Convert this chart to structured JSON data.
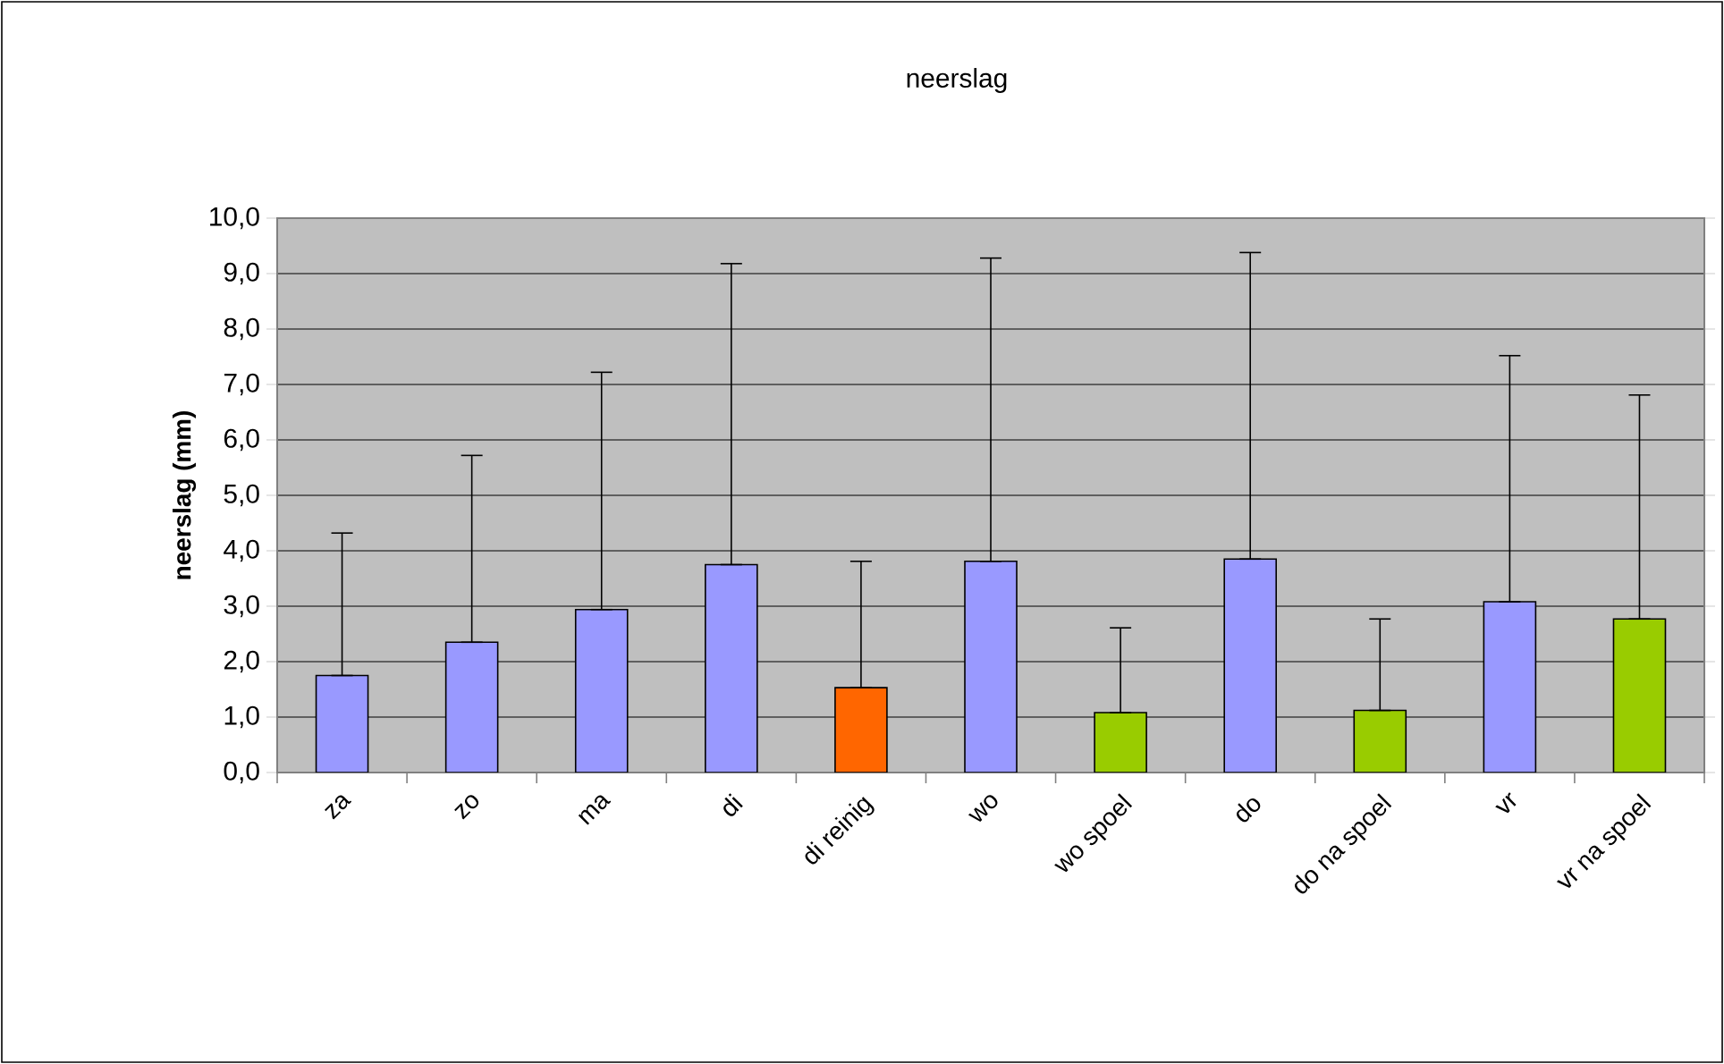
{
  "chart_data": {
    "type": "bar",
    "title": "neerslag",
    "ylabel": "neerslag (mm)",
    "categories": [
      "za",
      "zo",
      "ma",
      "di",
      "di reinig",
      "wo",
      "wo spoel",
      "do",
      "do na spoel",
      "vr",
      "vr na spoel"
    ],
    "values": [
      1.75,
      2.35,
      2.94,
      3.75,
      1.53,
      3.81,
      1.08,
      3.85,
      1.12,
      3.08,
      2.77
    ],
    "colors": [
      "#9999ff",
      "#9999ff",
      "#9999ff",
      "#9999ff",
      "#ff6600",
      "#9999ff",
      "#99cc00",
      "#9999ff",
      "#99cc00",
      "#9999ff",
      "#99cc00"
    ],
    "errors": [
      [
        1.75,
        4.32
      ],
      [
        2.35,
        5.72
      ],
      [
        2.94,
        7.22
      ],
      [
        3.75,
        9.18
      ],
      [
        1.53,
        3.81
      ],
      [
        3.81,
        9.28
      ],
      [
        1.08,
        2.61
      ],
      [
        3.85,
        9.38
      ],
      [
        1.12,
        2.77
      ],
      [
        3.08,
        7.52
      ],
      [
        2.77,
        6.81
      ]
    ],
    "ylim": [
      0,
      10
    ],
    "yticks": [
      {
        "value": 0,
        "label": "0,0"
      },
      {
        "value": 1,
        "label": "1,0"
      },
      {
        "value": 2,
        "label": "2,0"
      },
      {
        "value": 3,
        "label": "3,0"
      },
      {
        "value": 4,
        "label": "4,0"
      },
      {
        "value": 5,
        "label": "5,0"
      },
      {
        "value": 6,
        "label": "6,0"
      },
      {
        "value": 7,
        "label": "7,0"
      },
      {
        "value": 8,
        "label": "8,0"
      },
      {
        "value": 9,
        "label": "9,0"
      },
      {
        "value": 10,
        "label": "10,0"
      }
    ],
    "grid": "y"
  }
}
